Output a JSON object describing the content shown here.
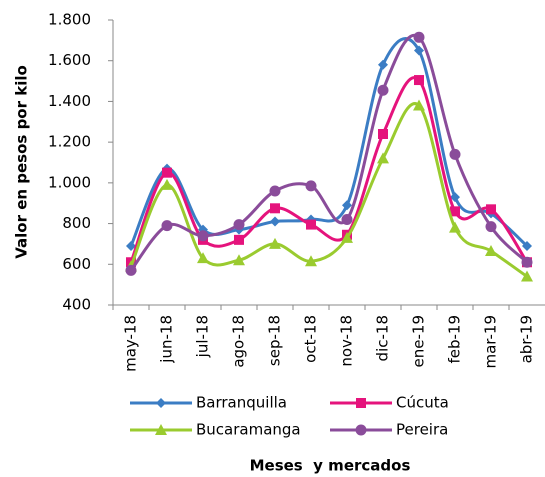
{
  "chart_data": {
    "type": "line",
    "x_label": "Meses  y mercados",
    "y_label": "Valor en pesos por kilo",
    "categories": [
      "may-18",
      "jun-18",
      "jul-18",
      "ago-18",
      "sep-18",
      "oct-18",
      "nov-18",
      "dic-18",
      "ene-19",
      "feb-19",
      "mar-19",
      "abr-19"
    ],
    "series": [
      {
        "name": "Barranquilla",
        "color": "#3b7dc4",
        "marker": "diamond",
        "values": [
          690,
          1070,
          770,
          770,
          810,
          820,
          890,
          1580,
          1650,
          930,
          850,
          690
        ]
      },
      {
        "name": "Cúcuta",
        "color": "#e5137c",
        "marker": "square",
        "values": [
          610,
          1050,
          720,
          720,
          875,
          795,
          745,
          1240,
          1505,
          860,
          870,
          610
        ]
      },
      {
        "name": "Bucaramanga",
        "color": "#9acb2f",
        "marker": "triangle",
        "values": [
          590,
          990,
          630,
          620,
          700,
          615,
          730,
          1120,
          1380,
          780,
          665,
          540
        ]
      },
      {
        "name": "Pereira",
        "color": "#8a4c9a",
        "marker": "circle",
        "values": [
          570,
          790,
          740,
          795,
          960,
          985,
          820,
          1455,
          1715,
          1140,
          785,
          610
        ]
      }
    ],
    "ylim": [
      400,
      1800
    ],
    "yticks": [
      400,
      600,
      800,
      {
        "value": 1000,
        "label": "1.000"
      },
      {
        "value": 1200,
        "label": "1.200"
      },
      {
        "value": 1400,
        "label": "1.400"
      },
      {
        "value": 1600,
        "label": "1.600"
      },
      {
        "value": 1800,
        "label": "1.800"
      }
    ],
    "grid": false
  }
}
